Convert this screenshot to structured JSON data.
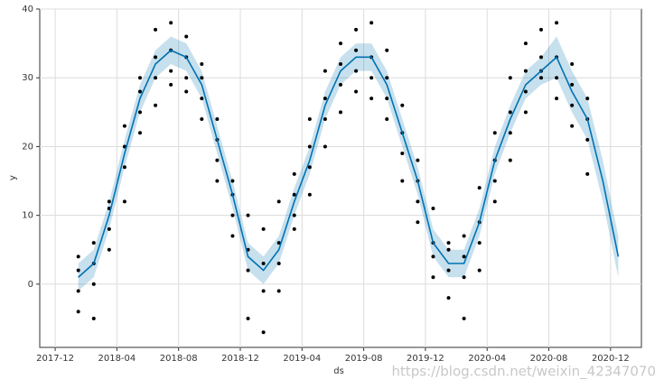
{
  "chart_data": {
    "type": "forecast",
    "xlabel": "ds",
    "ylabel": "y",
    "watermark": "https://blog.csdn.net/weixin_42347070",
    "xlim": [
      "2017-11",
      "2021-02"
    ],
    "xticks": [
      "2017-12",
      "2018-04",
      "2018-08",
      "2018-12",
      "2019-04",
      "2019-08",
      "2019-12",
      "2020-04",
      "2020-08",
      "2020-12"
    ],
    "ylim": [
      -9.2,
      40
    ],
    "yticks": [
      0,
      10,
      20,
      30,
      40
    ],
    "grid": true,
    "point_color": "#000000",
    "line_color": "#0072B2",
    "band_color": "#0072B2",
    "points": [
      {
        "x": "2018-01",
        "y": [
          -1,
          2,
          4,
          -4
        ]
      },
      {
        "x": "2018-02",
        "y": [
          0,
          3,
          6,
          -5
        ]
      },
      {
        "x": "2018-03",
        "y": [
          8,
          11,
          12,
          5
        ]
      },
      {
        "x": "2018-04",
        "y": [
          17,
          20,
          23,
          12
        ]
      },
      {
        "x": "2018-05",
        "y": [
          25,
          28,
          30,
          22
        ]
      },
      {
        "x": "2018-06",
        "y": [
          30,
          33,
          37,
          26
        ]
      },
      {
        "x": "2018-07",
        "y": [
          31,
          34,
          38,
          29
        ]
      },
      {
        "x": "2018-08",
        "y": [
          30,
          33,
          36,
          28
        ]
      },
      {
        "x": "2018-09",
        "y": [
          27,
          30,
          32,
          24
        ]
      },
      {
        "x": "2018-10",
        "y": [
          18,
          21,
          24,
          15
        ]
      },
      {
        "x": "2018-11",
        "y": [
          10,
          13,
          15,
          7
        ]
      },
      {
        "x": "2018-12",
        "y": [
          2,
          5,
          10,
          -5
        ]
      },
      {
        "x": "2019-01",
        "y": [
          -1,
          3,
          8,
          -7
        ]
      },
      {
        "x": "2019-02",
        "y": [
          3,
          6,
          12,
          -1
        ]
      },
      {
        "x": "2019-03",
        "y": [
          10,
          13,
          16,
          8
        ]
      },
      {
        "x": "2019-04",
        "y": [
          17,
          20,
          24,
          13
        ]
      },
      {
        "x": "2019-05",
        "y": [
          24,
          27,
          31,
          20
        ]
      },
      {
        "x": "2019-06",
        "y": [
          29,
          32,
          35,
          25
        ]
      },
      {
        "x": "2019-07",
        "y": [
          31,
          34,
          37,
          28
        ]
      },
      {
        "x": "2019-08",
        "y": [
          30,
          33,
          38,
          27
        ]
      },
      {
        "x": "2019-09",
        "y": [
          27,
          30,
          34,
          24
        ]
      },
      {
        "x": "2019-10",
        "y": [
          19,
          22,
          26,
          15
        ]
      },
      {
        "x": "2019-11",
        "y": [
          12,
          15,
          18,
          9
        ]
      },
      {
        "x": "2019-12",
        "y": [
          4,
          6,
          11,
          1
        ]
      },
      {
        "x": "2020-01",
        "y": [
          2,
          5,
          6,
          -2
        ]
      },
      {
        "x": "2020-02",
        "y": [
          1,
          4,
          7,
          -5
        ]
      },
      {
        "x": "2020-03",
        "y": [
          6,
          9,
          14,
          2
        ]
      },
      {
        "x": "2020-04",
        "y": [
          15,
          18,
          22,
          12
        ]
      },
      {
        "x": "2020-05",
        "y": [
          22,
          25,
          30,
          18
        ]
      },
      {
        "x": "2020-06",
        "y": [
          28,
          31,
          35,
          25
        ]
      },
      {
        "x": "2020-07",
        "y": [
          31,
          33,
          37,
          30
        ]
      },
      {
        "x": "2020-08",
        "y": [
          30,
          33,
          38,
          27
        ]
      },
      {
        "x": "2020-09",
        "y": [
          26,
          29,
          32,
          23
        ]
      },
      {
        "x": "2020-10",
        "y": [
          21,
          24,
          27,
          16
        ]
      }
    ],
    "x": [
      "2018-01",
      "2018-02",
      "2018-03",
      "2018-04",
      "2018-05",
      "2018-06",
      "2018-07",
      "2018-08",
      "2018-09",
      "2018-10",
      "2018-11",
      "2018-12",
      "2019-01",
      "2019-02",
      "2019-03",
      "2019-04",
      "2019-05",
      "2019-06",
      "2019-07",
      "2019-08",
      "2019-09",
      "2019-10",
      "2019-11",
      "2019-12",
      "2020-01",
      "2020-02",
      "2020-03",
      "2020-04",
      "2020-05",
      "2020-06",
      "2020-07",
      "2020-08",
      "2020-09",
      "2020-10",
      "2020-11",
      "2020-12"
    ],
    "yhat": [
      1,
      3,
      10,
      19,
      27,
      32,
      34,
      33,
      29,
      21,
      13,
      4,
      2,
      5,
      12,
      18,
      26,
      31,
      33,
      33,
      29,
      22,
      15,
      6,
      3,
      3,
      9,
      18,
      24,
      29,
      31,
      33,
      28,
      24,
      15,
      4
    ],
    "yhat_lower": [
      -1,
      1,
      8,
      17,
      25,
      30,
      32,
      31,
      27,
      19,
      11,
      2,
      0,
      3,
      10,
      16,
      24,
      29,
      31,
      31,
      27,
      20,
      13,
      4,
      1,
      1,
      7,
      16,
      22,
      27,
      29,
      30,
      25,
      21,
      12,
      1
    ],
    "yhat_upper": [
      3,
      5,
      12,
      21,
      29,
      34,
      36,
      35,
      31,
      23,
      15,
      6,
      4,
      7,
      14,
      20,
      28,
      33,
      35,
      35,
      31,
      24,
      17,
      8,
      5,
      5,
      11,
      20,
      26,
      31,
      33,
      36,
      31,
      27,
      18,
      7
    ]
  }
}
